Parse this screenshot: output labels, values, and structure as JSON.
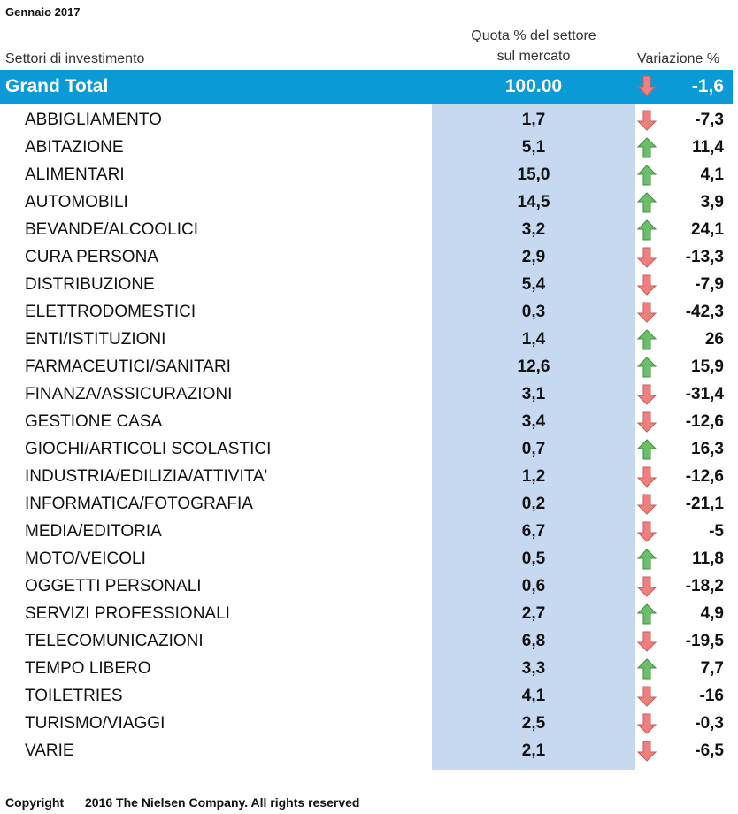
{
  "title": "Gennaio 2017",
  "headers": {
    "sector": "Settori di investimento",
    "share_line1": "Quota % del settore",
    "share_line2": "sul mercato",
    "variation": "Variazione %"
  },
  "grand_total": {
    "label": "Grand Total",
    "share": "100.00",
    "variation": "-1,6",
    "direction": "down"
  },
  "colors": {
    "header_bar": "#0a9bd6",
    "share_band": "#c6d9f1",
    "arrow_up": "#6bbf6a",
    "arrow_down": "#f08080"
  },
  "rows": [
    {
      "sector": "ABBIGLIAMENTO",
      "share": "1,7",
      "variation": "-7,3",
      "direction": "down"
    },
    {
      "sector": "ABITAZIONE",
      "share": "5,1",
      "variation": "11,4",
      "direction": "up"
    },
    {
      "sector": "ALIMENTARI",
      "share": "15,0",
      "variation": "4,1",
      "direction": "up"
    },
    {
      "sector": "AUTOMOBILI",
      "share": "14,5",
      "variation": "3,9",
      "direction": "up"
    },
    {
      "sector": "BEVANDE/ALCOOLICI",
      "share": "3,2",
      "variation": "24,1",
      "direction": "up"
    },
    {
      "sector": "CURA PERSONA",
      "share": "2,9",
      "variation": "-13,3",
      "direction": "down"
    },
    {
      "sector": "DISTRIBUZIONE",
      "share": "5,4",
      "variation": "-7,9",
      "direction": "down"
    },
    {
      "sector": "ELETTRODOMESTICI",
      "share": "0,3",
      "variation": "-42,3",
      "direction": "down"
    },
    {
      "sector": "ENTI/ISTITUZIONI",
      "share": "1,4",
      "variation": "26",
      "direction": "up"
    },
    {
      "sector": "FARMACEUTICI/SANITARI",
      "share": "12,6",
      "variation": "15,9",
      "direction": "up"
    },
    {
      "sector": "FINANZA/ASSICURAZIONI",
      "share": "3,1",
      "variation": "-31,4",
      "direction": "down"
    },
    {
      "sector": "GESTIONE CASA",
      "share": "3,4",
      "variation": "-12,6",
      "direction": "down"
    },
    {
      "sector": "GIOCHI/ARTICOLI SCOLASTICI",
      "share": "0,7",
      "variation": "16,3",
      "direction": "up"
    },
    {
      "sector": "INDUSTRIA/EDILIZIA/ATTIVITA'",
      "share": "1,2",
      "variation": "-12,6",
      "direction": "down"
    },
    {
      "sector": "INFORMATICA/FOTOGRAFIA",
      "share": "0,2",
      "variation": "-21,1",
      "direction": "down"
    },
    {
      "sector": "MEDIA/EDITORIA",
      "share": "6,7",
      "variation": "-5",
      "direction": "down"
    },
    {
      "sector": "MOTO/VEICOLI",
      "share": "0,5",
      "variation": "11,8",
      "direction": "up"
    },
    {
      "sector": "OGGETTI PERSONALI",
      "share": "0,6",
      "variation": "-18,2",
      "direction": "down"
    },
    {
      "sector": "SERVIZI PROFESSIONALI",
      "share": "2,7",
      "variation": "4,9",
      "direction": "up"
    },
    {
      "sector": "TELECOMUNICAZIONI",
      "share": "6,8",
      "variation": "-19,5",
      "direction": "down"
    },
    {
      "sector": "TEMPO LIBERO",
      "share": "3,3",
      "variation": "7,7",
      "direction": "up"
    },
    {
      "sector": "TOILETRIES",
      "share": "4,1",
      "variation": "-16",
      "direction": "down"
    },
    {
      "sector": "TURISMO/VIAGGI",
      "share": "2,5",
      "variation": "-0,3",
      "direction": "down"
    },
    {
      "sector": "VARIE",
      "share": "2,1",
      "variation": "-6,5",
      "direction": "down"
    }
  ],
  "footer": {
    "copyright_label": "Copyright",
    "copyright_text": "2016 The Nielsen Company. All rights reserved"
  }
}
